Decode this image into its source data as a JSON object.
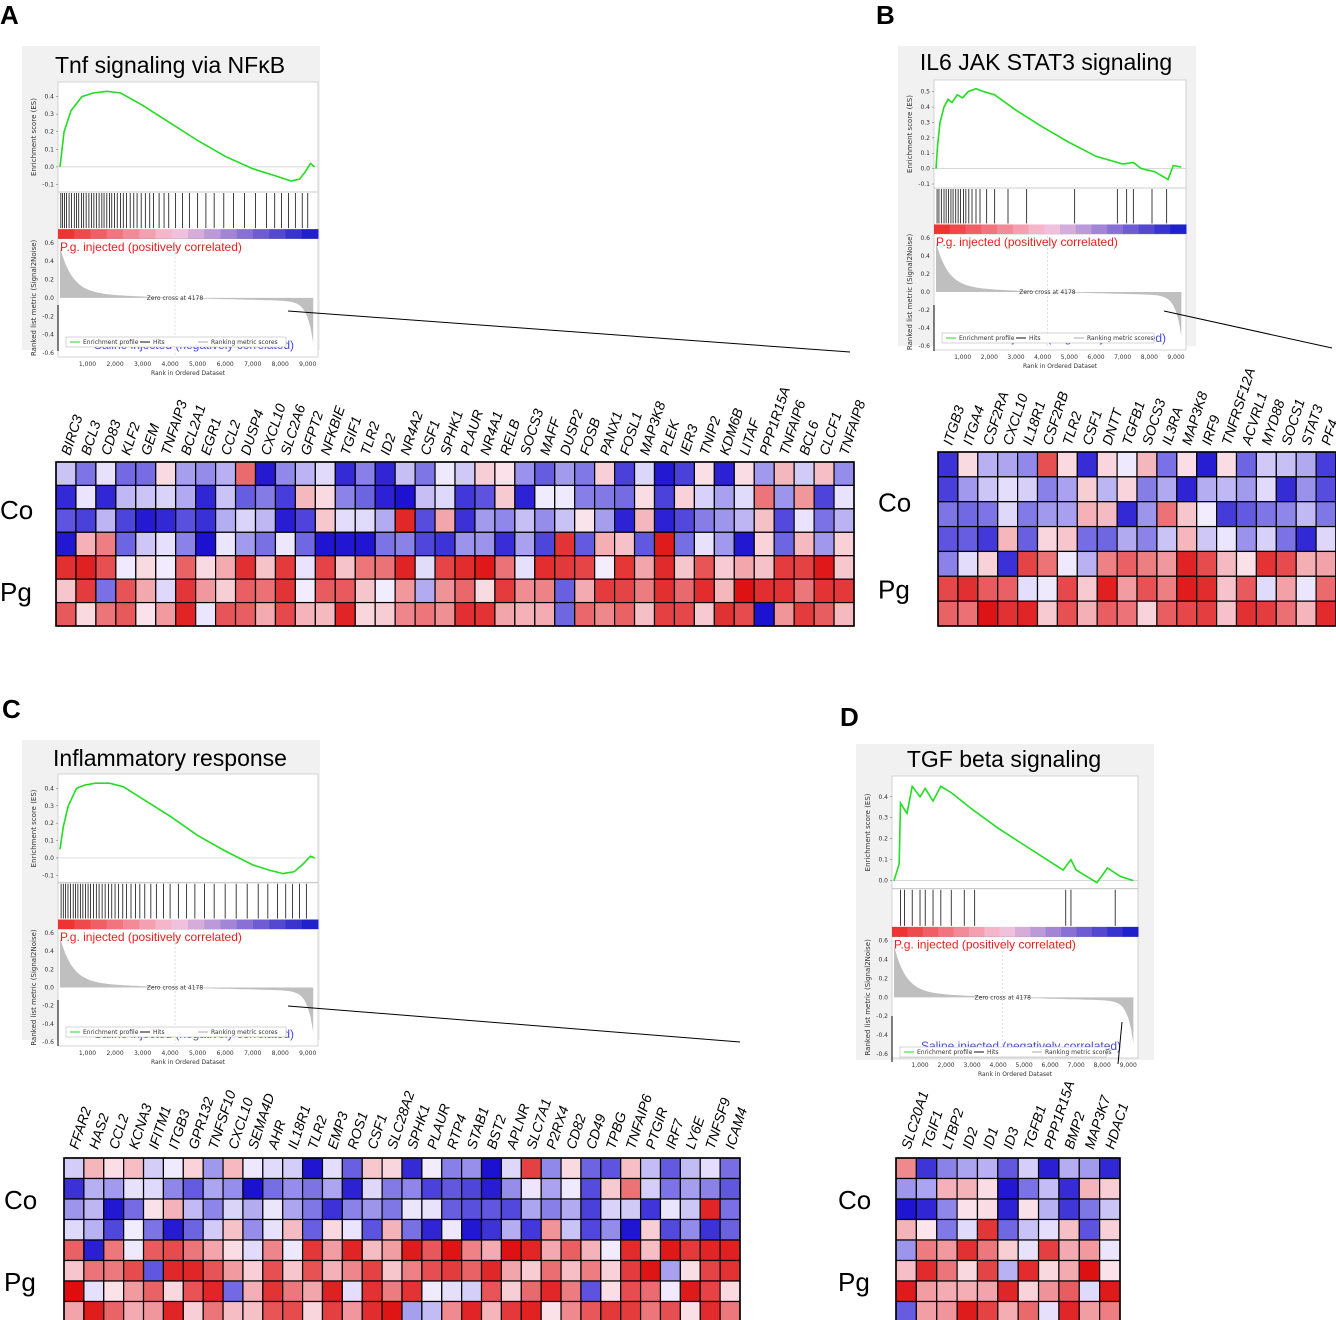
{
  "colors": {
    "es_line": "#22dd22",
    "hit": "#111111",
    "pos": "#e8201c",
    "neg": "#4a4ae0",
    "metric": "#aaaaaa",
    "bar_start": "#ee3333",
    "bar_mid": "#f6c6dc",
    "bar_end": "#2020cc"
  },
  "common": {
    "es_ylabel": "Enrichment score (ES)",
    "metric_ylabel": "Ranked list metric (Signal2Noise)",
    "xlabel": "Rank in Ordered Dataset",
    "pos_label": "P.g. injected (positively correlated)",
    "neg_label": "Saline injected (negatively correlated)",
    "zero_cross": "Zero cross at 4178",
    "legend": [
      "Enrichment profile",
      "Hits",
      "Ranking metric scores"
    ],
    "x_ticks": [
      "1,000",
      "2,000",
      "3,000",
      "4,000",
      "5,000",
      "6,000",
      "7,000",
      "8,000",
      "9,000"
    ],
    "metric_ticks": [
      "0.6",
      "0.4",
      "0.2",
      "0.0",
      "-0.2",
      "-0.4",
      "-0.6"
    ],
    "group_labels": [
      "Co",
      "Pg"
    ]
  },
  "chart_data": [
    {
      "panel": "A",
      "type": "heatmap",
      "title": "Tnf signaling via NFκB",
      "es_ticks": [
        "0.4",
        "0.3",
        "0.2",
        "0.1",
        "0.0",
        "-0.1"
      ],
      "es_range": [
        -0.12,
        0.46
      ],
      "es_profile": [
        [
          0,
          0.0
        ],
        [
          150,
          0.2
        ],
        [
          400,
          0.32
        ],
        [
          800,
          0.4
        ],
        [
          1200,
          0.42
        ],
        [
          1700,
          0.43
        ],
        [
          2200,
          0.42
        ],
        [
          3000,
          0.35
        ],
        [
          4000,
          0.25
        ],
        [
          5000,
          0.15
        ],
        [
          6000,
          0.06
        ],
        [
          7000,
          -0.01
        ],
        [
          8000,
          -0.06
        ],
        [
          8400,
          -0.08
        ],
        [
          8700,
          -0.07
        ],
        [
          8900,
          -0.03
        ],
        [
          9100,
          0.02
        ],
        [
          9250,
          0.0
        ]
      ],
      "hits": [
        30,
        90,
        160,
        240,
        330,
        420,
        520,
        600,
        680,
        780,
        860,
        950,
        1050,
        1140,
        1230,
        1320,
        1420,
        1520,
        1600,
        1700,
        1800,
        1880,
        1980,
        2080,
        2200,
        2300,
        2420,
        2550,
        2680,
        2800,
        2950,
        3100,
        3260,
        3400,
        3600,
        3780,
        3950,
        4200,
        4450,
        4700,
        5000,
        5300,
        5600,
        5950,
        6300,
        6700,
        7100,
        7500,
        7800,
        8050,
        8300,
        8550,
        8800,
        9000
      ],
      "genes": [
        "BIRC3",
        "BCL3",
        "CD83",
        "KLF2",
        "GEM",
        "TNFAIP3",
        "BCL2A1",
        "EGR1",
        "CCL2",
        "DUSP4",
        "CXCL10",
        "SLC2A6",
        "GFPT2",
        "NFKBIE",
        "TGIF1",
        "TLR2",
        "ID2",
        "NR4A2",
        "CSF1",
        "SPHK1",
        "PLAUR",
        "NR4A1",
        "RELB",
        "SOCS3",
        "MAFF",
        "DUSP2",
        "FOSB",
        "PANX1",
        "FOSL1",
        "MAP3K8",
        "PLEK",
        "IER3",
        "TNIP2",
        "KDM6B",
        "LITAF",
        "PPP1R15A",
        "TNFAIP6",
        "BCL6",
        "CLCF1",
        "TNFAIP8"
      ],
      "rows": 7,
      "co_rows": 4,
      "seed": 11
    },
    {
      "panel": "B",
      "type": "heatmap",
      "title": "IL6 JAK STAT3 signaling",
      "es_ticks": [
        "0.5",
        "0.4",
        "0.3",
        "0.2",
        "0.1",
        "0.0",
        "-0.1"
      ],
      "es_range": [
        -0.1,
        0.55
      ],
      "es_profile": [
        [
          0,
          0.0
        ],
        [
          60,
          0.15
        ],
        [
          150,
          0.3
        ],
        [
          300,
          0.4
        ],
        [
          450,
          0.45
        ],
        [
          600,
          0.43
        ],
        [
          800,
          0.48
        ],
        [
          1000,
          0.46
        ],
        [
          1200,
          0.5
        ],
        [
          1500,
          0.52
        ],
        [
          1800,
          0.5
        ],
        [
          2200,
          0.48
        ],
        [
          3000,
          0.38
        ],
        [
          4000,
          0.27
        ],
        [
          5000,
          0.17
        ],
        [
          6000,
          0.08
        ],
        [
          7000,
          0.03
        ],
        [
          7400,
          0.04
        ],
        [
          7700,
          0.0
        ],
        [
          8200,
          -0.02
        ],
        [
          8700,
          -0.07
        ],
        [
          8900,
          0.02
        ],
        [
          9200,
          0.01
        ]
      ],
      "hits": [
        40,
        110,
        200,
        300,
        380,
        470,
        560,
        640,
        740,
        830,
        920,
        1030,
        1120,
        1230,
        1350,
        1500,
        1650,
        1900,
        2200,
        2700,
        3400,
        5200,
        6800,
        7150,
        7400,
        8100,
        8650
      ],
      "genes": [
        "ITGB3",
        "ITGA4",
        "CSF2RA",
        "CXCL10",
        "IL18R1",
        "CSF2RB",
        "TLR2",
        "CSF1",
        "DNTT",
        "TGFB1",
        "SOCS3",
        "IL3RA",
        "MAP3K8",
        "IRF9",
        "TNFRSF12A",
        "ACVRL1",
        "MYD88",
        "SOCS1",
        "STAT3",
        "PF4"
      ],
      "rows": 7,
      "co_rows": 4,
      "seed": 23
    },
    {
      "panel": "C",
      "type": "heatmap",
      "title": "Inflammatory response",
      "es_ticks": [
        "0.4",
        "0.3",
        "0.2",
        "0.1",
        "0.0",
        "-0.1"
      ],
      "es_range": [
        -0.12,
        0.46
      ],
      "es_profile": [
        [
          0,
          0.05
        ],
        [
          120,
          0.18
        ],
        [
          300,
          0.3
        ],
        [
          600,
          0.4
        ],
        [
          900,
          0.42
        ],
        [
          1300,
          0.43
        ],
        [
          1800,
          0.43
        ],
        [
          2300,
          0.41
        ],
        [
          3000,
          0.34
        ],
        [
          4000,
          0.24
        ],
        [
          5000,
          0.13
        ],
        [
          6000,
          0.04
        ],
        [
          7000,
          -0.04
        ],
        [
          7600,
          -0.07
        ],
        [
          8100,
          -0.09
        ],
        [
          8500,
          -0.08
        ],
        [
          8800,
          -0.04
        ],
        [
          9100,
          0.01
        ],
        [
          9250,
          0.0
        ]
      ],
      "hits": [
        40,
        120,
        200,
        290,
        380,
        480,
        560,
        650,
        740,
        830,
        930,
        1020,
        1110,
        1220,
        1320,
        1420,
        1530,
        1640,
        1760,
        1880,
        2000,
        2130,
        2280,
        2420,
        2580,
        2740,
        2900,
        3080,
        3300,
        3500,
        3760,
        4000,
        4300,
        4600,
        4900,
        5250,
        5600,
        6000,
        6400,
        6800,
        7200,
        7550,
        7900,
        8200,
        8450,
        8700,
        8950
      ],
      "genes": [
        "FFAR2",
        "HAS2",
        "CCL2",
        "KCNA3",
        "IFITM1",
        "ITGB3",
        "GPR132",
        "TNFSF10",
        "CXCL10",
        "SEMA4D",
        "AHR",
        "IL18R1",
        "TLR2",
        "EMP3",
        "ROS1",
        "CSF1",
        "SLC28A2",
        "SPHK1",
        "PLAUR",
        "RTP4",
        "STAB1",
        "BST2",
        "APLNR",
        "SLC7A1",
        "P2RX4",
        "CD82",
        "CD49",
        "TPBG",
        "TNFAIP6",
        "PTGIR",
        "IRF7",
        "LY6E",
        "TNFSF9",
        "ICAM4"
      ],
      "rows": 8,
      "co_rows": 4,
      "seed": 37
    },
    {
      "panel": "D",
      "type": "heatmap",
      "title": "TGF beta signaling",
      "es_ticks": [
        "0.4",
        "0.3",
        "0.2",
        "0.1",
        "0.0"
      ],
      "es_range": [
        -0.02,
        0.48
      ],
      "es_profile": [
        [
          0,
          0.0
        ],
        [
          200,
          0.08
        ],
        [
          250,
          0.37
        ],
        [
          500,
          0.32
        ],
        [
          700,
          0.45
        ],
        [
          1000,
          0.4
        ],
        [
          1200,
          0.44
        ],
        [
          1500,
          0.38
        ],
        [
          1800,
          0.45
        ],
        [
          2200,
          0.42
        ],
        [
          3000,
          0.34
        ],
        [
          4000,
          0.25
        ],
        [
          5000,
          0.17
        ],
        [
          6000,
          0.09
        ],
        [
          6500,
          0.05
        ],
        [
          6800,
          0.1
        ],
        [
          7000,
          0.05
        ],
        [
          7800,
          -0.01
        ],
        [
          8200,
          0.06
        ],
        [
          8700,
          0.02
        ],
        [
          9200,
          0.0
        ]
      ],
      "hits": [
        250,
        400,
        700,
        1000,
        1200,
        1500,
        1800,
        2200,
        2700,
        3100,
        6600,
        6800,
        8500
      ],
      "genes": [
        "SLC20A1",
        "TGIF1",
        "LTBP2",
        "ID2",
        "ID1",
        "ID3",
        "TGFB1",
        "PPP1R15A",
        "BMP2",
        "MAP3K7",
        "HDAC1"
      ],
      "rows": 8,
      "co_rows": 4,
      "seed": 53
    }
  ]
}
